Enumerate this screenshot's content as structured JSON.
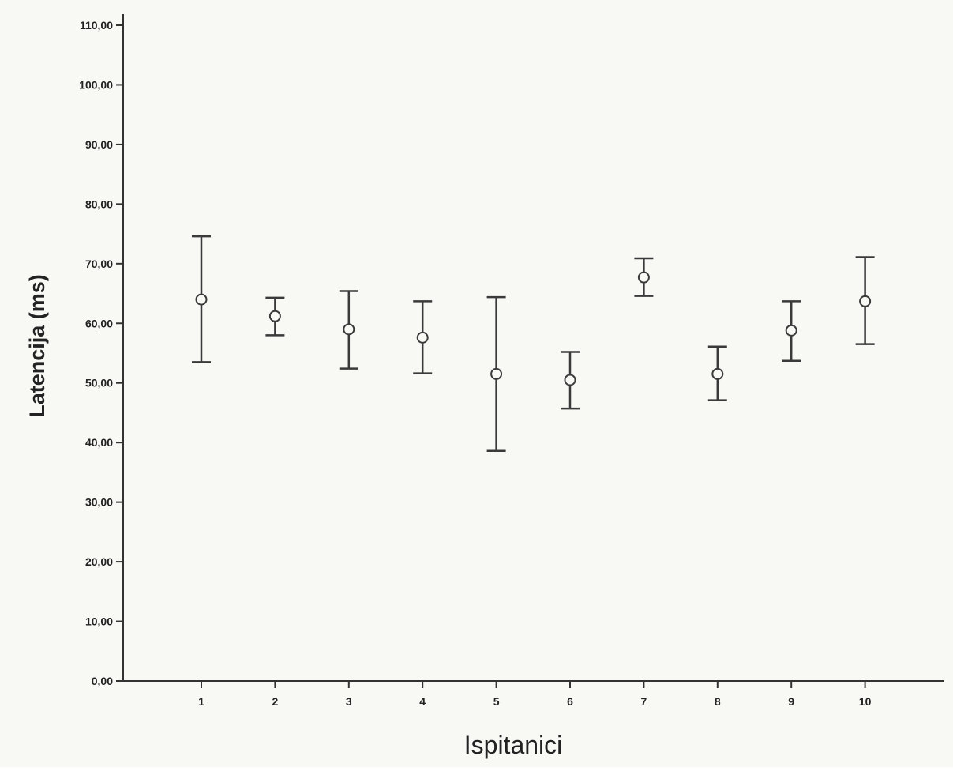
{
  "chart_data": {
    "type": "scatter",
    "subtype": "error-bar",
    "title": "",
    "xlabel": "Ispitanici",
    "ylabel": "Latencija (ms)",
    "categories": [
      "1",
      "2",
      "3",
      "4",
      "5",
      "6",
      "7",
      "8",
      "9",
      "10"
    ],
    "means": [
      64.0,
      61.2,
      59.0,
      57.6,
      51.5,
      50.5,
      67.7,
      51.5,
      58.8,
      63.7
    ],
    "lower": [
      53.5,
      58.0,
      52.4,
      51.6,
      38.6,
      45.7,
      64.6,
      47.1,
      53.7,
      56.5
    ],
    "upper": [
      74.6,
      64.3,
      65.4,
      63.7,
      64.4,
      55.2,
      70.9,
      56.1,
      63.7,
      71.1
    ],
    "ylim": [
      0,
      110
    ],
    "yticks": [
      "0,00",
      "10,00",
      "20,00",
      "30,00",
      "40,00",
      "50,00",
      "60,00",
      "70,00",
      "80,00",
      "90,00",
      "100,00",
      "110,00"
    ],
    "grid": false,
    "colors": {
      "background": "#f8f8f5",
      "marks": "#3a3a3a",
      "axis": "#333333"
    }
  }
}
